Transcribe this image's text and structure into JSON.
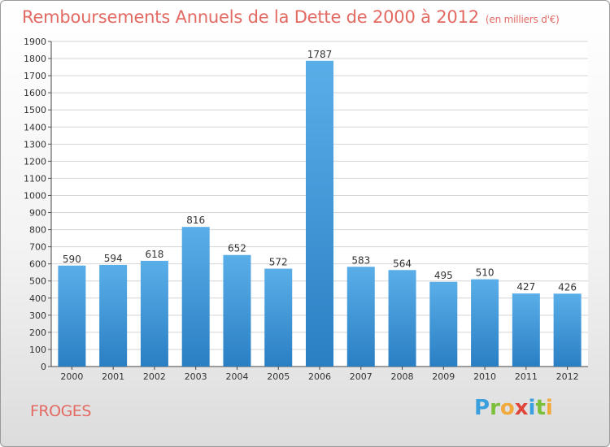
{
  "chart_data": {
    "type": "bar",
    "title": "Remboursements Annuels de la Dette de 2000 à 2012",
    "subtitle": "(en milliers d'€)",
    "categories": [
      "2000",
      "2001",
      "2002",
      "2003",
      "2004",
      "2005",
      "2006",
      "2007",
      "2008",
      "2009",
      "2010",
      "2011",
      "2012"
    ],
    "values": [
      590,
      594,
      618,
      816,
      652,
      572,
      1787,
      583,
      564,
      495,
      510,
      427,
      426
    ],
    "ylim": [
      0,
      1900
    ],
    "yticks": [
      0,
      100,
      200,
      300,
      400,
      500,
      600,
      700,
      800,
      900,
      1000,
      1100,
      1200,
      1300,
      1400,
      1500,
      1600,
      1700,
      1800,
      1900
    ],
    "grid": true,
    "bar_color": "#3d95d8"
  },
  "footer": {
    "commune": "FROGES",
    "logo_letters": [
      {
        "ch": "P",
        "color": "#3aa0dd"
      },
      {
        "ch": "r",
        "color": "#7cbf3a"
      },
      {
        "ch": "o",
        "color": "#f2a93b"
      },
      {
        "ch": "x",
        "color": "#e0453b"
      },
      {
        "ch": "i",
        "color": "#3aa0dd"
      },
      {
        "ch": "t",
        "color": "#7cbf3a"
      },
      {
        "ch": "i",
        "color": "#f2a93b"
      }
    ]
  }
}
